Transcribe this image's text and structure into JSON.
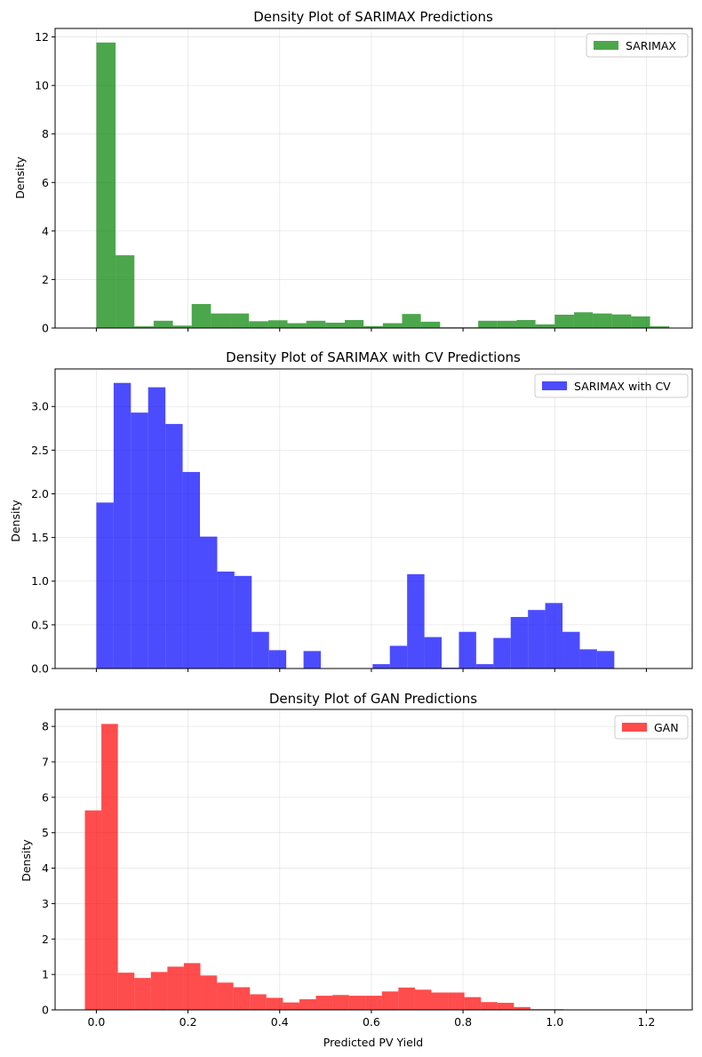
{
  "chart_data": [
    {
      "type": "bar",
      "title": "Density Plot of SARIMAX Predictions",
      "xlabel": "",
      "ylabel": "Density",
      "legend": "SARIMAX",
      "legend_position": "top-right",
      "color": "#008000",
      "grid": true,
      "xlim": [
        -0.09,
        1.3
      ],
      "ylim": [
        0,
        12.35
      ],
      "xticks": [
        0.0,
        0.2,
        0.4,
        0.6,
        0.8,
        1.0,
        1.2
      ],
      "xtick_labels_visible": false,
      "yticks": [
        0,
        2,
        4,
        6,
        8,
        10,
        12
      ],
      "ytick_labels": [
        "0",
        "2",
        "4",
        "6",
        "8",
        "10",
        "12"
      ],
      "bin_edges": [
        0.0,
        0.042,
        0.083,
        0.125,
        0.167,
        0.208,
        0.25,
        0.292,
        0.333,
        0.375,
        0.417,
        0.458,
        0.5,
        0.542,
        0.583,
        0.625,
        0.667,
        0.708,
        0.75,
        0.792,
        0.833,
        0.875,
        0.917,
        0.958,
        1.0,
        1.042,
        1.083,
        1.125,
        1.167,
        1.208,
        1.25
      ],
      "values": [
        11.77,
        3.0,
        0.07,
        0.3,
        0.1,
        0.99,
        0.6,
        0.6,
        0.28,
        0.32,
        0.2,
        0.3,
        0.22,
        0.33,
        0.08,
        0.2,
        0.58,
        0.26,
        0.03,
        0.03,
        0.3,
        0.3,
        0.33,
        0.15,
        0.55,
        0.65,
        0.6,
        0.56,
        0.48,
        0.07
      ]
    },
    {
      "type": "bar",
      "title": "Density Plot of SARIMAX with CV Predictions",
      "xlabel": "",
      "ylabel": "Density",
      "legend": "SARIMAX with CV",
      "legend_position": "top-right",
      "color": "#0000FF",
      "grid": true,
      "xlim": [
        -0.09,
        1.3
      ],
      "ylim": [
        0,
        3.43
      ],
      "xticks": [
        0.0,
        0.2,
        0.4,
        0.6,
        0.8,
        1.0,
        1.2
      ],
      "xtick_labels_visible": false,
      "yticks": [
        0.0,
        0.5,
        1.0,
        1.5,
        2.0,
        2.5,
        3.0
      ],
      "ytick_labels": [
        "0.0",
        "0.5",
        "1.0",
        "1.5",
        "2.0",
        "2.5",
        "3.0"
      ],
      "bin_edges": [
        0.0,
        0.0377,
        0.0753,
        0.113,
        0.1507,
        0.1883,
        0.226,
        0.2637,
        0.3013,
        0.339,
        0.3767,
        0.4143,
        0.452,
        0.4897,
        0.5273,
        0.565,
        0.6027,
        0.6403,
        0.678,
        0.7157,
        0.7533,
        0.791,
        0.8287,
        0.8663,
        0.904,
        0.9417,
        0.9793,
        1.017,
        1.0547,
        1.0923,
        1.13
      ],
      "values": [
        1.9,
        3.27,
        2.93,
        3.22,
        2.8,
        2.25,
        1.51,
        1.11,
        1.06,
        0.42,
        0.21,
        0.0,
        0.2,
        0.0,
        0.0,
        0.0,
        0.05,
        0.26,
        1.08,
        0.36,
        0.01,
        0.42,
        0.05,
        0.35,
        0.59,
        0.67,
        0.75,
        0.42,
        0.22,
        0.2
      ]
    },
    {
      "type": "bar",
      "title": "Density Plot of GAN Predictions",
      "xlabel": "Predicted PV Yield",
      "ylabel": "Density",
      "legend": "GAN",
      "legend_position": "top-right",
      "color": "#FF0000",
      "grid": true,
      "xlim": [
        -0.09,
        1.3
      ],
      "ylim": [
        0,
        8.48
      ],
      "xticks": [
        0.0,
        0.2,
        0.4,
        0.6,
        0.8,
        1.0,
        1.2
      ],
      "xtick_labels_visible": true,
      "xtick_labels": [
        "0.0",
        "0.2",
        "0.4",
        "0.6",
        "0.8",
        "1.0",
        "1.2"
      ],
      "yticks": [
        0,
        1,
        2,
        3,
        4,
        5,
        6,
        7,
        8
      ],
      "ytick_labels": [
        "0",
        "1",
        "2",
        "3",
        "4",
        "5",
        "6",
        "7",
        "8"
      ],
      "bin_edges": [
        -0.025,
        0.011,
        0.047,
        0.083,
        0.119,
        0.155,
        0.191,
        0.227,
        0.263,
        0.299,
        0.335,
        0.371,
        0.407,
        0.443,
        0.479,
        0.515,
        0.551,
        0.587,
        0.623,
        0.659,
        0.695,
        0.731,
        0.767,
        0.803,
        0.839,
        0.875,
        0.911,
        0.947,
        0.983,
        1.019,
        1.055
      ],
      "values": [
        5.63,
        8.07,
        1.05,
        0.9,
        1.07,
        1.22,
        1.32,
        0.97,
        0.77,
        0.64,
        0.44,
        0.34,
        0.21,
        0.3,
        0.4,
        0.42,
        0.4,
        0.4,
        0.52,
        0.63,
        0.57,
        0.49,
        0.49,
        0.36,
        0.22,
        0.2,
        0.08,
        0.02,
        0.02,
        0.0
      ]
    }
  ]
}
